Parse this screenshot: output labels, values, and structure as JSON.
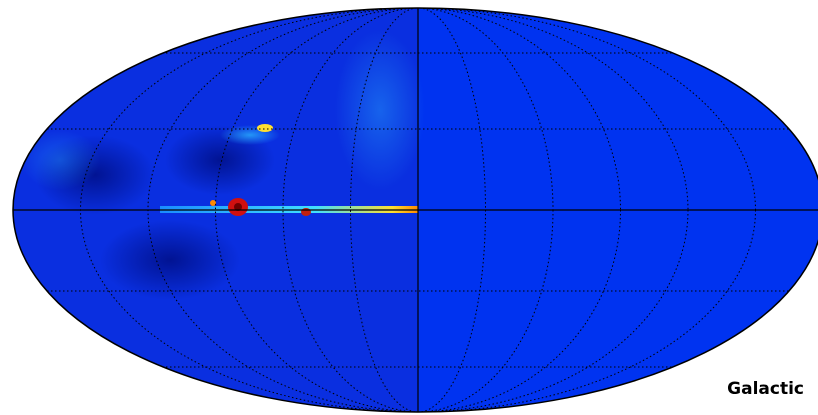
{
  "map": {
    "label": "Galactic"
  }
}
